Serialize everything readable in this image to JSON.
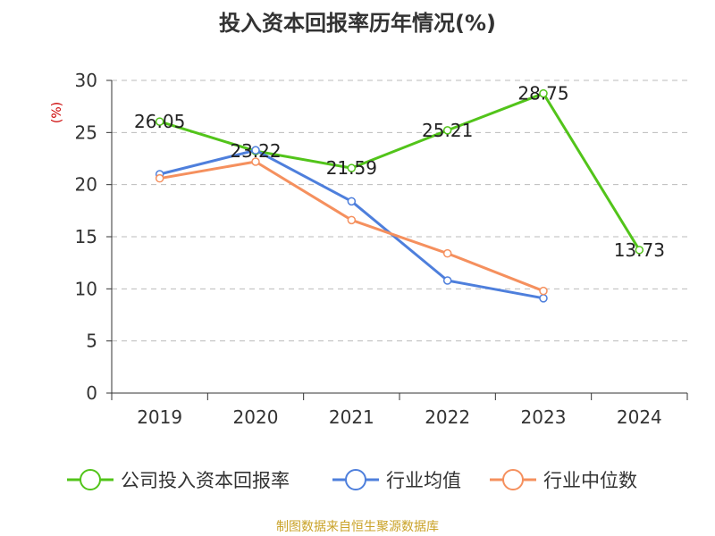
{
  "chart_data": {
    "type": "line",
    "title": "投入资本回报率历年情况(%)",
    "ylabel": "(%)",
    "xlabel": "",
    "categories": [
      "2019",
      "2020",
      "2021",
      "2022",
      "2023",
      "2024"
    ],
    "ylim": [
      0,
      30
    ],
    "yticks": [
      0,
      5,
      10,
      15,
      20,
      25,
      30
    ],
    "grid": true,
    "legend_position": "bottom",
    "series": [
      {
        "name": "公司投入资本回报率",
        "color": "#52c41a",
        "values": [
          26.05,
          23.22,
          21.59,
          25.21,
          28.75,
          13.73
        ],
        "value_labels": [
          "26.05",
          "23.22",
          "21.59",
          "25.21",
          "28.75",
          "13.73"
        ]
      },
      {
        "name": "行业均值",
        "color": "#4e7fdc",
        "values": [
          21.0,
          23.3,
          18.4,
          10.8,
          9.1,
          null
        ]
      },
      {
        "name": "行业中位数",
        "color": "#f5905e",
        "values": [
          20.6,
          22.2,
          16.6,
          13.4,
          9.8,
          null
        ]
      }
    ]
  },
  "source": "制图数据来自恒生聚源数据库",
  "colors": {
    "title": "#333333",
    "axis_text": "#333333",
    "ylabel": "#cc0000",
    "grid": "#bbbbbb",
    "source": "#c9a227"
  }
}
